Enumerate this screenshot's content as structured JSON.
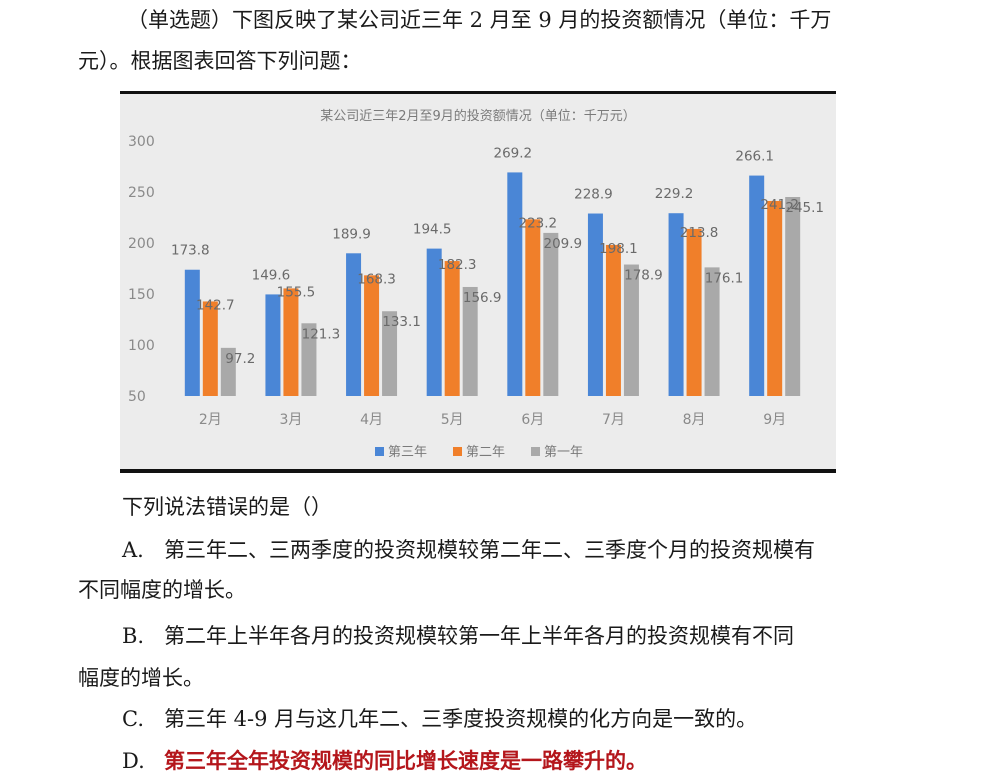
{
  "question": {
    "intro_line1": "（单选题）下图反映了某公司近三年 2 月至 9 月的投资额情况（单位：千万",
    "intro_line2": "元）。根据图表回答下列问题：",
    "prompt": "下列说法错误的是（）",
    "options": [
      {
        "label": "A.",
        "line1": "第三年二、三两季度的投资规模较第二年二、三季度个月的投资规模有",
        "line2": "不同幅度的增长。"
      },
      {
        "label": "B.",
        "line1": "第二年上半年各月的投资规模较第一年上半年各月的投资规模有不同",
        "line2": "幅度的增长。"
      },
      {
        "label": "C.",
        "line1": "第三年 4-9 月与这几年二、三季度投资规模的化方向是一致的。",
        "line2": ""
      },
      {
        "label": "D.",
        "line1": "第三年全年投资规模的同比增长速度是一路攀升的。",
        "line2": ""
      }
    ]
  },
  "chart_data": {
    "type": "bar",
    "title": "某公司近三年2月至9月的投资额情况（单位：千万元）",
    "categories": [
      "2月",
      "3月",
      "4月",
      "5月",
      "6月",
      "7月",
      "8月",
      "9月"
    ],
    "series": [
      {
        "name": "第三年",
        "color": "#4a86d6",
        "values": [
          173.8,
          149.6,
          189.9,
          194.5,
          269.2,
          228.9,
          229.2,
          266.1
        ]
      },
      {
        "name": "第二年",
        "color": "#f07f2a",
        "values": [
          142.7,
          155.5,
          168.3,
          182.3,
          223.2,
          198.1,
          213.8,
          241.2
        ]
      },
      {
        "name": "第一年",
        "color": "#a9a9a9",
        "values": [
          97.2,
          121.3,
          133.1,
          156.9,
          209.9,
          178.9,
          176.1,
          245.1
        ]
      }
    ],
    "yticks": [
      50,
      100,
      150,
      200,
      250,
      300
    ],
    "ylim": [
      50,
      300
    ],
    "grid": false,
    "legend_position": "bottom"
  }
}
